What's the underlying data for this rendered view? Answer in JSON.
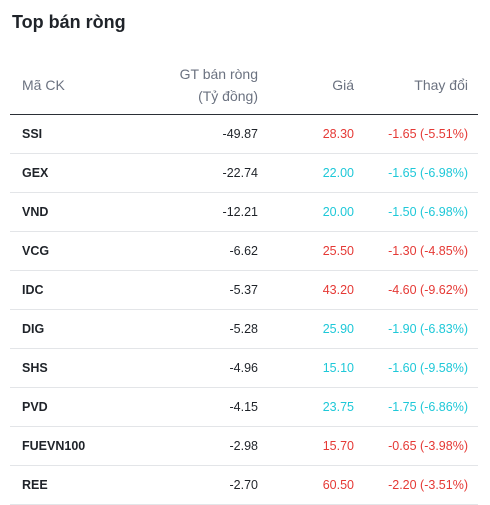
{
  "title": "Top bán ròng",
  "colors": {
    "down": "#e53935",
    "floor": "#1ec8d8"
  },
  "columns": {
    "symbol": "Mã CK",
    "value_line1": "GT bán ròng",
    "value_line2": "(Tỷ đồng)",
    "price": "Giá",
    "change": "Thay đổi"
  },
  "rows": [
    {
      "symbol": "SSI",
      "value": "-49.87",
      "price": "28.30",
      "change": "-1.65 (-5.51%)",
      "status": "down"
    },
    {
      "symbol": "GEX",
      "value": "-22.74",
      "price": "22.00",
      "change": "-1.65 (-6.98%)",
      "status": "floor"
    },
    {
      "symbol": "VND",
      "value": "-12.21",
      "price": "20.00",
      "change": "-1.50 (-6.98%)",
      "status": "floor"
    },
    {
      "symbol": "VCG",
      "value": "-6.62",
      "price": "25.50",
      "change": "-1.30 (-4.85%)",
      "status": "down"
    },
    {
      "symbol": "IDC",
      "value": "-5.37",
      "price": "43.20",
      "change": "-4.60 (-9.62%)",
      "status": "down"
    },
    {
      "symbol": "DIG",
      "value": "-5.28",
      "price": "25.90",
      "change": "-1.90 (-6.83%)",
      "status": "floor"
    },
    {
      "symbol": "SHS",
      "value": "-4.96",
      "price": "15.10",
      "change": "-1.60 (-9.58%)",
      "status": "floor"
    },
    {
      "symbol": "PVD",
      "value": "-4.15",
      "price": "23.75",
      "change": "-1.75 (-6.86%)",
      "status": "floor"
    },
    {
      "symbol": "FUEVN100",
      "value": "-2.98",
      "price": "15.70",
      "change": "-0.65 (-3.98%)",
      "status": "down"
    },
    {
      "symbol": "REE",
      "value": "-2.70",
      "price": "60.50",
      "change": "-2.20 (-3.51%)",
      "status": "down"
    }
  ]
}
